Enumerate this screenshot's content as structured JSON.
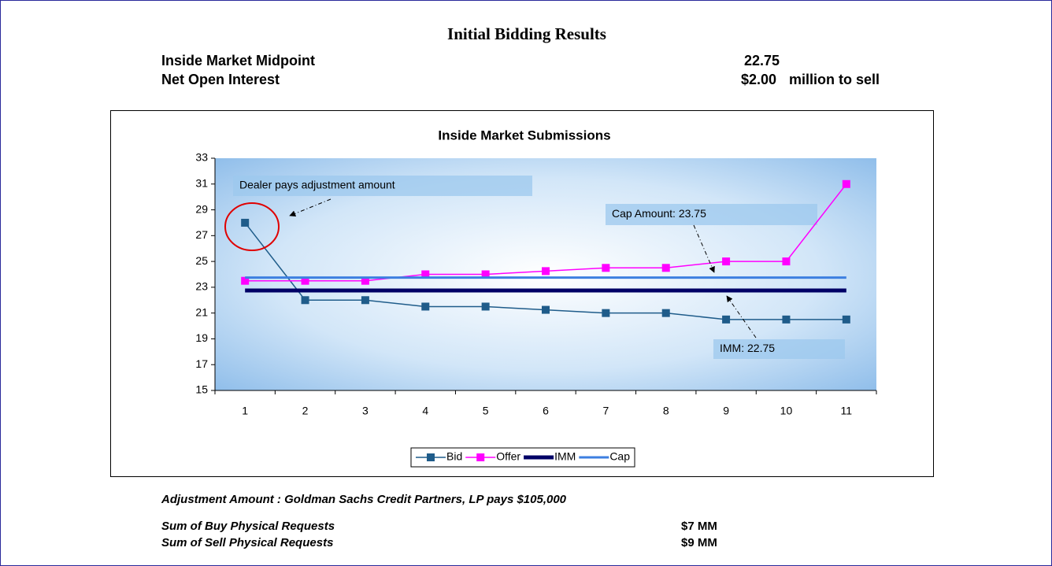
{
  "header": {
    "title": "Initial Bidding Results"
  },
  "summary": {
    "rows": [
      {
        "label": "Inside Market Midpoint",
        "value": "22.75"
      },
      {
        "label": "Net Open Interest",
        "value": "$2.00",
        "unit": "million to sell"
      }
    ]
  },
  "chart_data": {
    "type": "line",
    "title": "Inside Market Submissions",
    "categories": [
      "1",
      "2",
      "3",
      "4",
      "5",
      "6",
      "7",
      "8",
      "9",
      "10",
      "11"
    ],
    "series": [
      {
        "name": "Bid",
        "color": "#1f5c8a",
        "line_width": 1.5,
        "marker": "square",
        "values": [
          28,
          22,
          22,
          21.5,
          21.5,
          21.25,
          21,
          21,
          20.5,
          20.5,
          20.5
        ]
      },
      {
        "name": "Offer",
        "color": "#ff00ff",
        "line_width": 1.5,
        "marker": "square",
        "values": [
          23.5,
          23.5,
          23.5,
          24,
          24,
          24.25,
          24.5,
          24.5,
          25,
          25,
          31
        ]
      },
      {
        "name": "IMM",
        "color": "#000066",
        "line_width": 5,
        "marker": "none",
        "values": [
          22.75,
          22.75,
          22.75,
          22.75,
          22.75,
          22.75,
          22.75,
          22.75,
          22.75,
          22.75,
          22.75
        ]
      },
      {
        "name": "Cap",
        "color": "#3d7fe0",
        "line_width": 3,
        "marker": "none",
        "values": [
          23.75,
          23.75,
          23.75,
          23.75,
          23.75,
          23.75,
          23.75,
          23.75,
          23.75,
          23.75,
          23.75
        ]
      }
    ],
    "ylim": [
      15,
      33
    ],
    "yticks": [
      15,
      17,
      19,
      21,
      23,
      25,
      27,
      29,
      31,
      33
    ],
    "annotations": [
      "Dealer pays adjustment amount",
      "Cap Amount: 23.75",
      "IMM: 22.75"
    ],
    "legend": "bottom"
  },
  "footer": {
    "adjustment": "Adjustment Amount : Goldman Sachs Credit Partners, LP pays $105,000",
    "rows": [
      {
        "label": "Sum of Buy Physical Requests",
        "value": "$7 MM"
      },
      {
        "label": "Sum of Sell Physical Requests",
        "value": "$9 MM"
      }
    ]
  }
}
